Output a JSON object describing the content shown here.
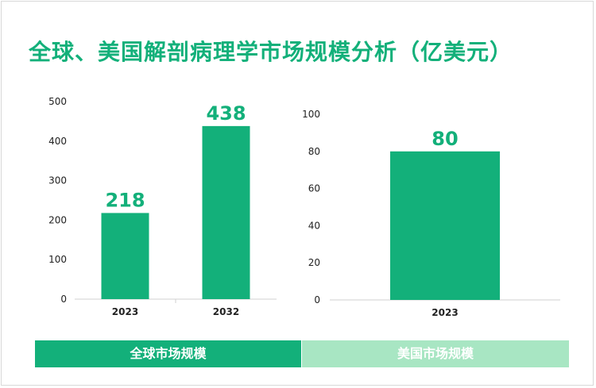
{
  "title": "全球、美国解剖病理学市场规模分析（亿美元）",
  "colors": {
    "bar": "#13b07a",
    "accent_light": "#a8e6c3",
    "title": "#13b07a"
  },
  "panels": {
    "global_label": "全球市场规模",
    "us_label": "美国市场规模"
  },
  "chart_data": [
    {
      "type": "bar",
      "title": "",
      "categories": [
        "2023",
        "2032"
      ],
      "values": [
        218,
        438
      ],
      "ylim": [
        0,
        500
      ],
      "yticks": [
        0,
        100,
        200,
        300,
        400,
        500
      ],
      "grid": false,
      "data_labels": [
        "218",
        "438"
      ],
      "caption": "全球市场规模"
    },
    {
      "type": "bar",
      "title": "",
      "categories": [
        "2023"
      ],
      "values": [
        80
      ],
      "ylim": [
        0,
        100
      ],
      "yticks": [
        0,
        20,
        40,
        60,
        80,
        100
      ],
      "grid": false,
      "data_labels": [
        "80"
      ],
      "caption": "美国市场规模"
    }
  ]
}
